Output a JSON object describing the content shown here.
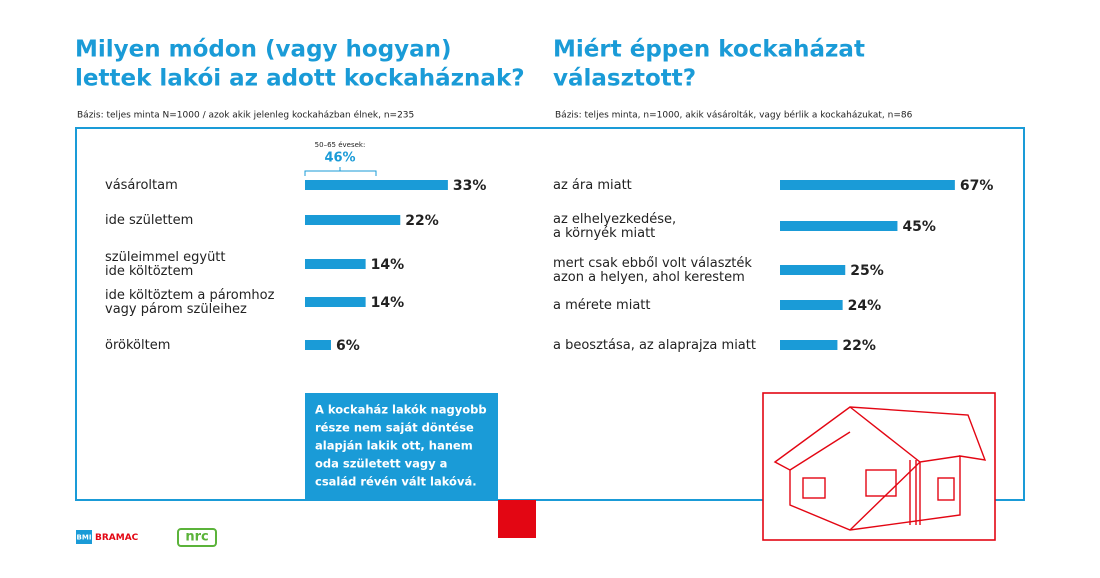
{
  "chart_data": [
    {
      "type": "bar",
      "title": "Milyen módon (vagy hogyan)\nlettek lakói az adott kockaháznak?",
      "note": "Bázis: teljes minta N=1000 / azok akik jelenleg kockaházban élnek, n=235",
      "categories": [
        "vásároltam",
        "ide születtem",
        "szüleimmel együtt\nide költöztem",
        "ide költöztem a páromhoz\nvagy párom szüleihez",
        "örököltem"
      ],
      "values": [
        33,
        22,
        14,
        14,
        6
      ],
      "value_labels": [
        "33%",
        "22%",
        "14%",
        "14%",
        "6%"
      ],
      "color": "#1a9bd7",
      "annotation": {
        "label": "50–65 évesek:",
        "value_label": "46%"
      }
    },
    {
      "type": "bar",
      "title": "Miért éppen kockaházat\nválasztott?",
      "note": "Bázis: teljes minta, n=1000, akik vásárolták, vagy bérlik a kockaházukat, n=86",
      "categories": [
        "az ára miatt",
        "az elhelyezkedése,\na környék miatt",
        "mert csak ebből volt választék\nazon a helyen, ahol kerestem",
        "a mérete miatt",
        "a beosztása, az alaprajza miatt"
      ],
      "values": [
        67,
        45,
        25,
        24,
        22
      ],
      "value_labels": [
        "67%",
        "45%",
        "25%",
        "24%",
        "22%"
      ],
      "color": "#1a9bd7"
    }
  ],
  "callout": {
    "lines": [
      "A kockaház lakók nagyobb",
      "része nem saját döntése",
      "alapján lakik ott, hanem",
      "oda született vagy a",
      "család révén vált lakóvá."
    ]
  },
  "logos": {
    "bmi": "BMI",
    "bramac": "BRAMAC",
    "nrc": "nrc"
  }
}
